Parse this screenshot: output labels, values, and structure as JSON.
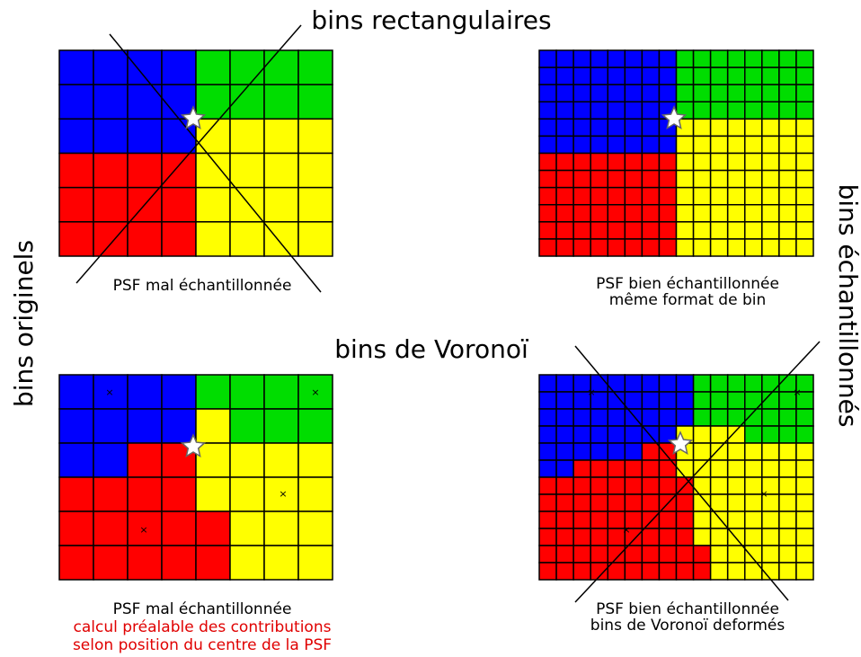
{
  "titles": {
    "top": "bins rectangulaires",
    "middle": "bins de Voronoï",
    "left": "bins originels",
    "right": "bins échantillonnés"
  },
  "panels": [
    {
      "caption": [
        "PSF mal échantillonnée"
      ]
    },
    {
      "caption": [
        "PSF bien échantillonnée",
        "même format de bin"
      ]
    },
    {
      "caption": [
        "PSF mal échantillonnée",
        "calcul préalable des contributions",
        "selon position du centre de la PSF"
      ]
    },
    {
      "caption": [
        "PSF bien échantillonnée",
        "bins de Voronoï deformés"
      ]
    }
  ]
}
